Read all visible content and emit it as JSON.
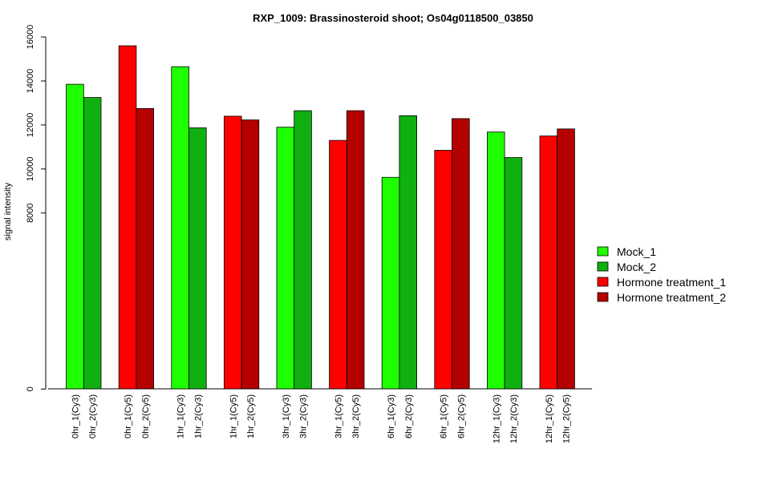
{
  "chart_data": {
    "type": "bar",
    "title": "RXP_1009: Brassinosteroid shoot; Os04g0118500_03850",
    "xlabel": "",
    "ylabel": "signal intensity",
    "yticks": [
      0,
      8000,
      10000,
      12000,
      14000,
      16000
    ],
    "categories": [
      "0hr_1(Cy3)",
      "0hr_2(Cy3)",
      "0hr_1(Cy5)",
      "0hr_2(Cy5)",
      "1hr_1(Cy3)",
      "1hr_2(Cy3)",
      "1hr_1(Cy5)",
      "1hr_2(Cy5)",
      "3hr_1(Cy3)",
      "3hr_2(Cy3)",
      "3hr_1(Cy5)",
      "3hr_2(Cy5)",
      "6hr_1(Cy3)",
      "6hr_2(Cy3)",
      "6hr_1(Cy5)",
      "6hr_2(Cy5)",
      "12hr_1(Cy3)",
      "12hr_2(Cy3)",
      "12hr_1(Cy5)",
      "12hr_2(Cy5)"
    ],
    "values": [
      13850,
      13250,
      15600,
      12750,
      14650,
      11870,
      12400,
      12230,
      11900,
      12650,
      11300,
      12650,
      9620,
      12420,
      10850,
      12290,
      11680,
      10520,
      11500,
      11820
    ],
    "series_index": [
      0,
      1,
      2,
      3,
      0,
      1,
      2,
      3,
      0,
      1,
      2,
      3,
      0,
      1,
      2,
      3,
      0,
      1,
      2,
      3
    ],
    "legend": [
      {
        "name": "Mock_1",
        "color": "#1eff00"
      },
      {
        "name": "Mock_2",
        "color": "#10b010"
      },
      {
        "name": "Hormone treatment_1",
        "color": "#ff0000"
      },
      {
        "name": "Hormone treatment_2",
        "color": "#b50000"
      }
    ],
    "legend_position": "right",
    "grid": false
  }
}
